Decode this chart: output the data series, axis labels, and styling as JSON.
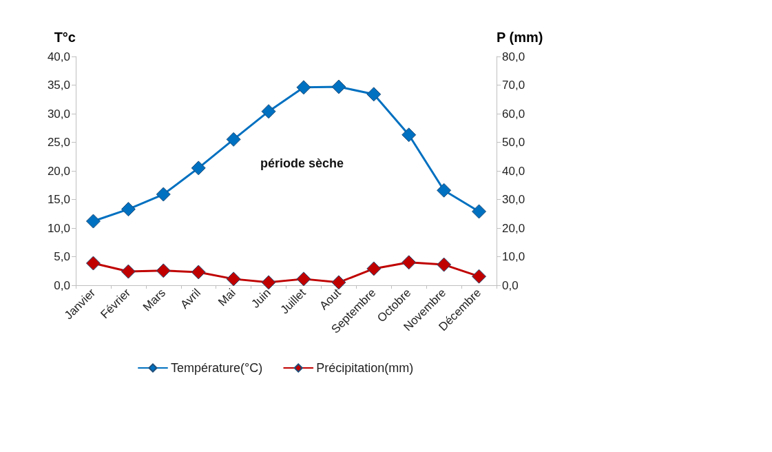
{
  "chart_data": {
    "type": "line",
    "ylabel": "T°c",
    "y2label": "P (mm)",
    "categories": [
      "Janvier",
      "Février",
      "Mars",
      "Avril",
      "Mai",
      "Juin",
      "Juillet",
      "Aout",
      "Septembre",
      "Octobre",
      "Novembre",
      "Décembre"
    ],
    "series": [
      {
        "name": "Température(°C)",
        "color": "#0070c0",
        "values": [
          11.2,
          13.3,
          15.9,
          20.5,
          25.5,
          30.4,
          34.6,
          34.7,
          33.4,
          26.3,
          16.6,
          12.9
        ]
      },
      {
        "name": "Précipitation(mm)",
        "color": "#c00000",
        "axis": "y2",
        "values": [
          7.7,
          4.8,
          5.1,
          4.6,
          2.2,
          1.0,
          2.2,
          1.0,
          5.8,
          8.0,
          7.2,
          3.1
        ]
      }
    ],
    "ylim": [
      0,
      40
    ],
    "yticks": [
      {
        "value": 0,
        "label": "0,0"
      },
      {
        "value": 5,
        "label": "5,0"
      },
      {
        "value": 10,
        "label": "10,0"
      },
      {
        "value": 15,
        "label": "15,0"
      },
      {
        "value": 20,
        "label": "20,0"
      },
      {
        "value": 25,
        "label": "25,0"
      },
      {
        "value": 30,
        "label": "30,0"
      },
      {
        "value": 35,
        "label": "35,0"
      },
      {
        "value": 40,
        "label": "40,0"
      }
    ],
    "y2lim": [
      0,
      80
    ],
    "y2ticks": [
      {
        "value": 0,
        "label": "0,0"
      },
      {
        "value": 10,
        "label": "10,0"
      },
      {
        "value": 20,
        "label": "20,0"
      },
      {
        "value": 30,
        "label": "30,0"
      },
      {
        "value": 40,
        "label": "40,0"
      },
      {
        "value": 50,
        "label": "50,0"
      },
      {
        "value": 60,
        "label": "60,0"
      },
      {
        "value": 70,
        "label": "70,0"
      },
      {
        "value": 80,
        "label": "80,0"
      }
    ],
    "annotations": [
      "période sèche"
    ],
    "grid": false,
    "legend": "bottom",
    "marker": "diamond",
    "line_style": "solid"
  }
}
